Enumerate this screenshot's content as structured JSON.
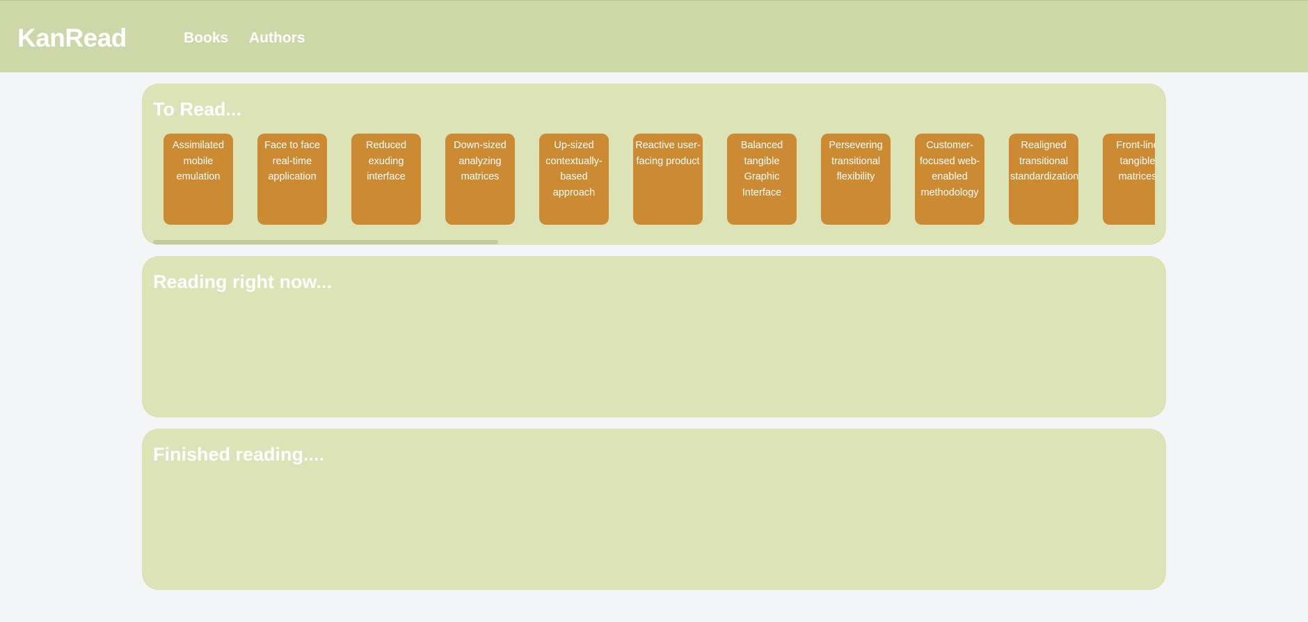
{
  "header": {
    "brand": "KanRead",
    "nav": [
      {
        "label": "Books"
      },
      {
        "label": "Authors"
      }
    ]
  },
  "columns": {
    "to_read": {
      "title": "To Read...",
      "cards": [
        {
          "title": "Assimilated mobile emulation"
        },
        {
          "title": "Face to face real-time application"
        },
        {
          "title": "Reduced exuding interface"
        },
        {
          "title": "Down-sized analyzing matrices"
        },
        {
          "title": "Up-sized contextually-based approach"
        },
        {
          "title": "Reactive user-facing product"
        },
        {
          "title": "Balanced tangible Graphic Interface"
        },
        {
          "title": "Persevering transitional flexibility"
        },
        {
          "title": "Customer-focused web-enabled methodology"
        },
        {
          "title": "Realigned transitional standardization"
        },
        {
          "title": "Front-line tangible matrices"
        }
      ]
    },
    "reading": {
      "title": "Reading right now..."
    },
    "finished": {
      "title": "Finished reading...."
    }
  },
  "colors": {
    "header_bg": "#cdd7a8",
    "panel_bg": "#dbe3b7",
    "card_bg": "#cc8b33",
    "page_bg": "#f4f5f7",
    "text": "#ffffff"
  }
}
